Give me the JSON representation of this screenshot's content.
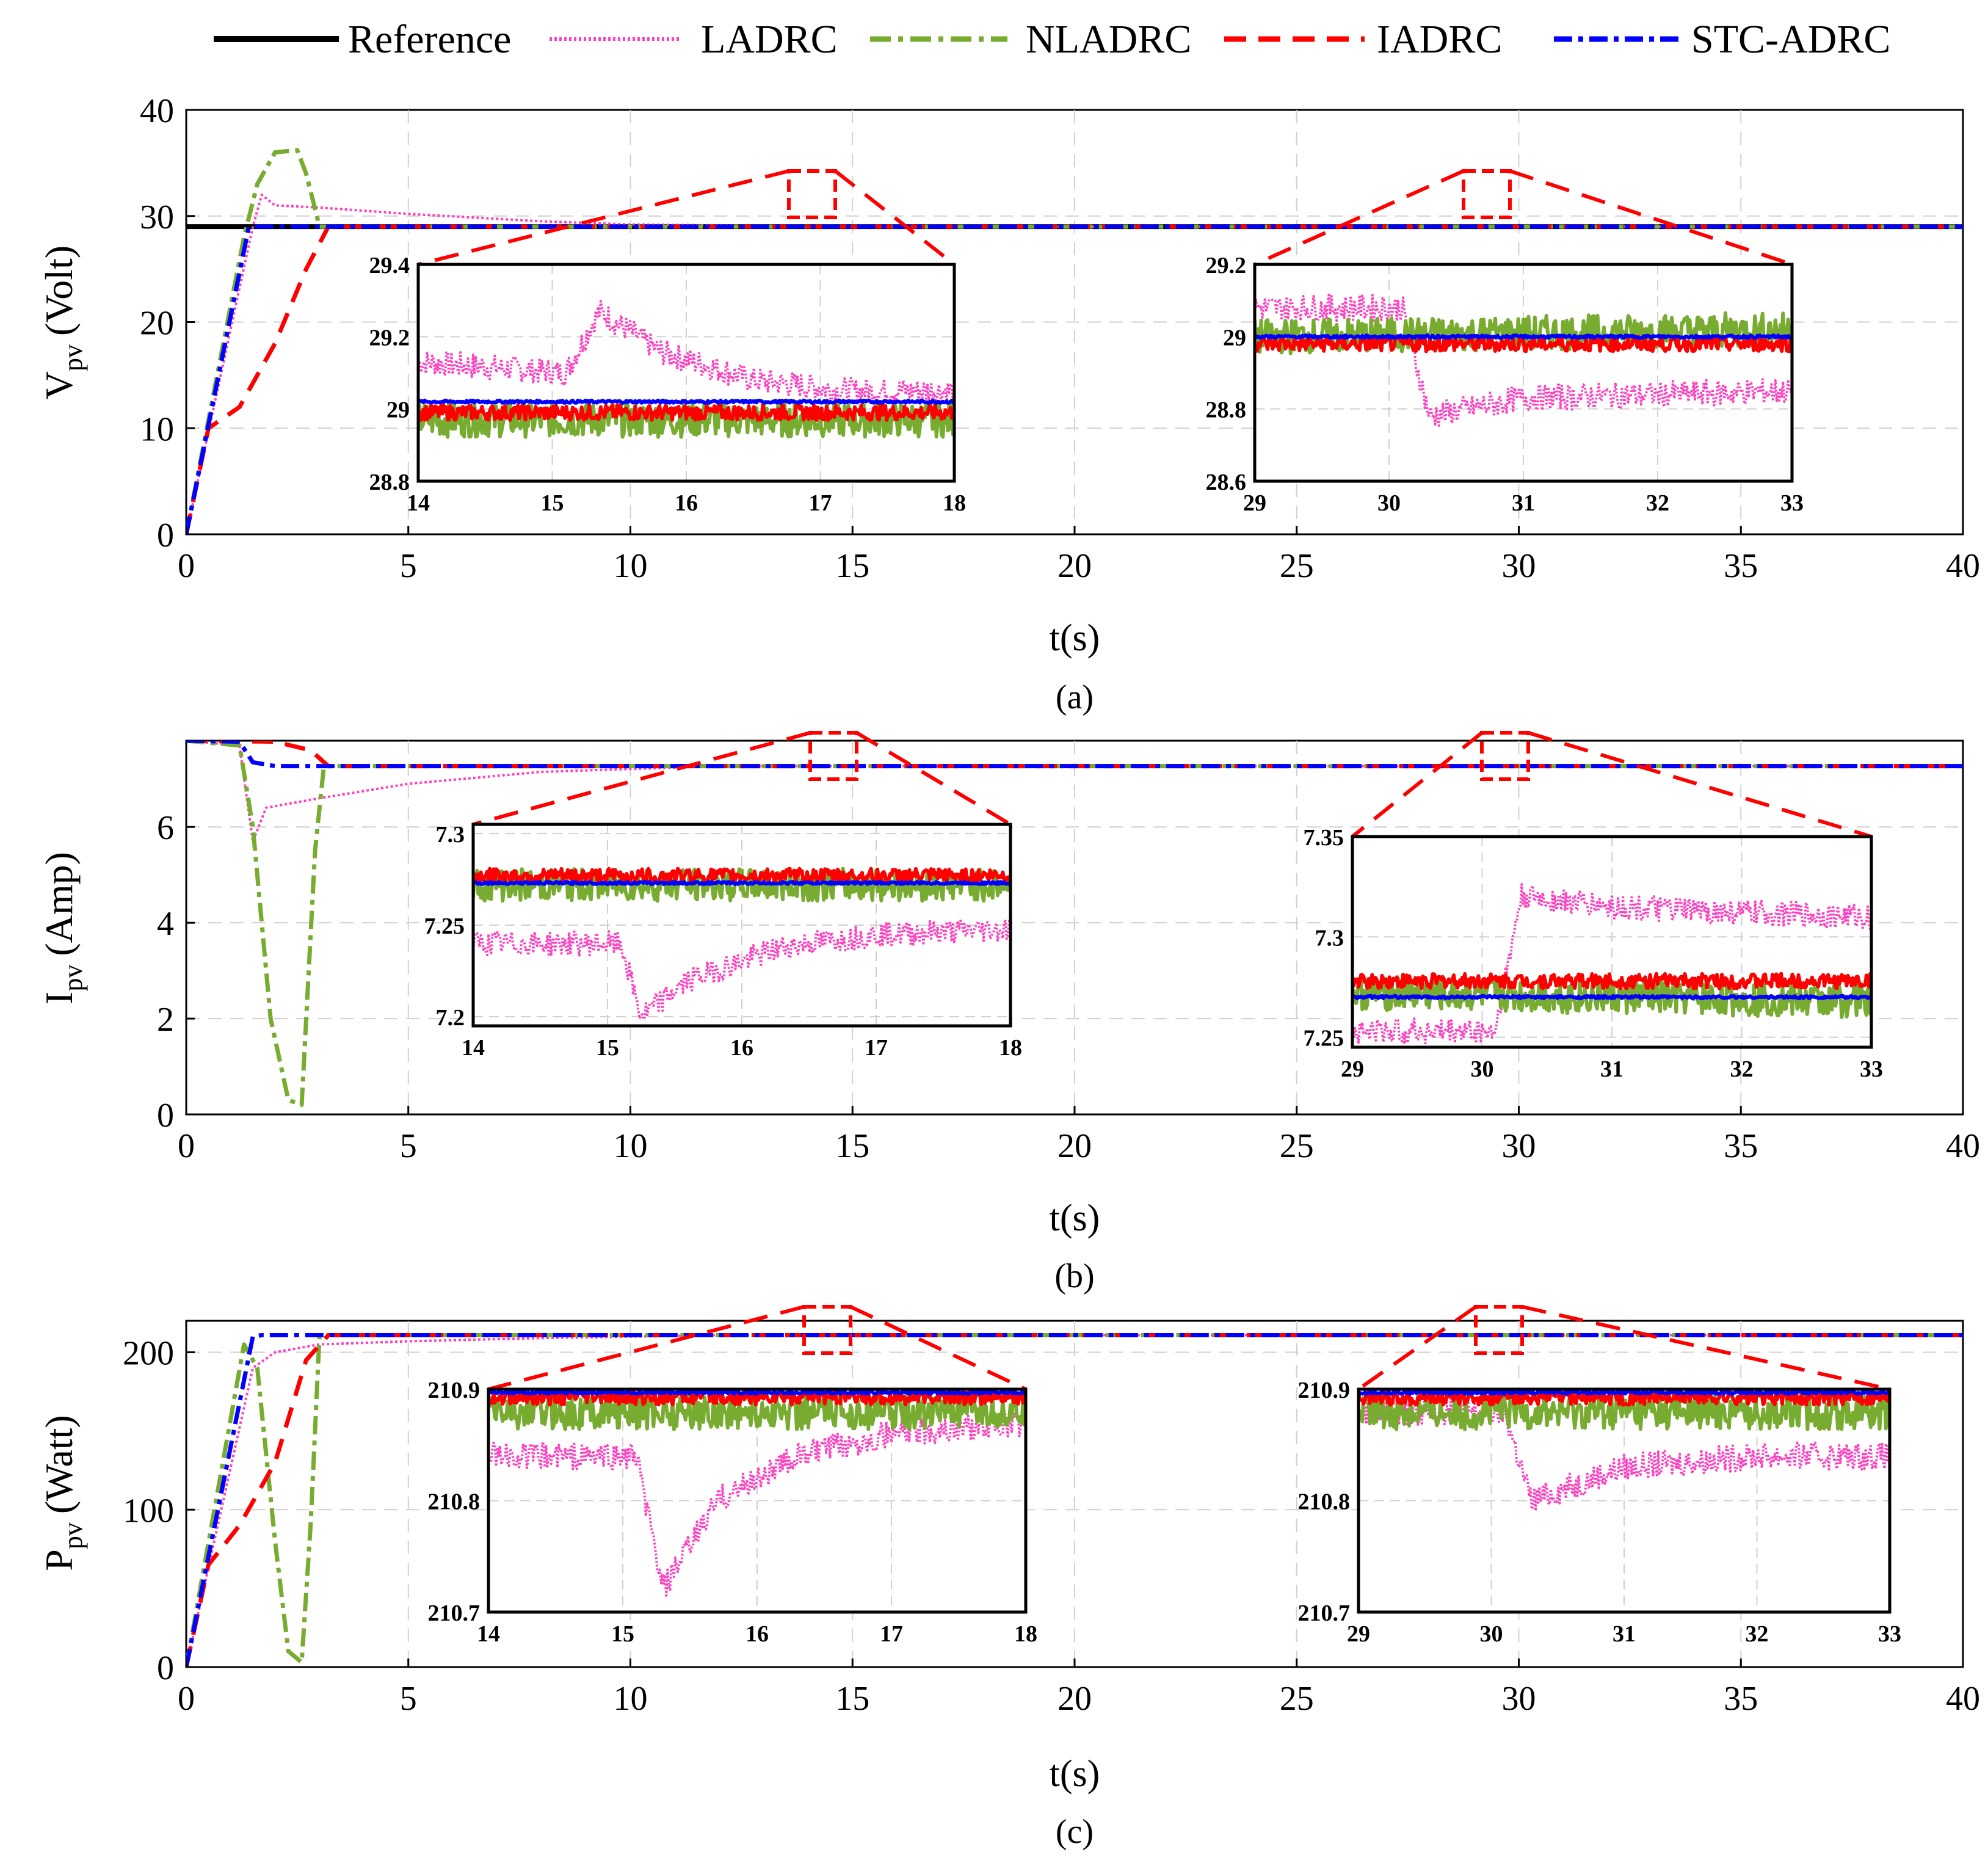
{
  "legend": [
    {
      "name": "Reference",
      "color": "#000000",
      "dash": "solid"
    },
    {
      "name": "LADRC",
      "color": "#ff3fbf",
      "dash": "dot"
    },
    {
      "name": "NLADRC",
      "color": "#77ac30",
      "dash": "dashdot"
    },
    {
      "name": "IADRC",
      "color": "#ff0000",
      "dash": "dash"
    },
    {
      "name": "STC-ADRC",
      "color": "#0000ff",
      "dash": "dashdot"
    }
  ],
  "chart_data": [
    {
      "type": "line",
      "caption": "(a)",
      "xlabel": "t(s)",
      "ylabel_main": "V",
      "ylabel_sub": "pv",
      "ylabel_unit": "(Volt)",
      "xlim": [
        0,
        40
      ],
      "ylim": [
        0,
        40
      ],
      "xticks": [
        0,
        5,
        10,
        15,
        20,
        25,
        30,
        35,
        40
      ],
      "yticks": [
        0,
        10,
        20,
        30,
        40
      ],
      "series": [
        {
          "name": "Reference",
          "x": [
            0,
            40
          ],
          "y": [
            29,
            29
          ]
        },
        {
          "name": "LADRC",
          "x": [
            0,
            1.5,
            1.7,
            2,
            3,
            5,
            8,
            10,
            15,
            40
          ],
          "y": [
            0,
            29,
            32,
            31,
            30.8,
            30.2,
            29.5,
            29.2,
            29,
            29
          ]
        },
        {
          "name": "NLADRC",
          "x": [
            0,
            1.3,
            1.6,
            2,
            2.5,
            2.7,
            3,
            40
          ],
          "y": [
            0,
            28,
            33,
            36,
            36.2,
            34,
            29,
            29
          ]
        },
        {
          "name": "IADRC",
          "x": [
            0,
            0.5,
            1.2,
            2,
            2.7,
            3.2,
            40
          ],
          "y": [
            0,
            10,
            12,
            18,
            25,
            29,
            29
          ]
        },
        {
          "name": "STC-ADRC",
          "x": [
            0,
            1.4,
            1.6,
            40
          ],
          "y": [
            0,
            28.8,
            29,
            29
          ]
        }
      ],
      "insets": [
        {
          "xlim": [
            14,
            18
          ],
          "ylim": [
            28.8,
            29.4
          ],
          "xticks": [
            14,
            15,
            16,
            17,
            18
          ],
          "yticks": [
            "29.4",
            "29.2",
            "29",
            "28.8"
          ],
          "series": [
            {
              "name": "LADRC",
              "x": [
                14,
                15.1,
                15.35,
                15.8,
                16.5,
                17.2,
                18
              ],
              "y": [
                29.13,
                29.1,
                29.27,
                29.16,
                29.08,
                29.05,
                29.05
              ]
            },
            {
              "name": "NLADRC",
              "x": [
                14,
                18
              ],
              "y": [
                28.97,
                28.97
              ]
            },
            {
              "name": "IADRC",
              "x": [
                14,
                18
              ],
              "y": [
                28.99,
                28.99
              ]
            },
            {
              "name": "STC-ADRC",
              "x": [
                14,
                18
              ],
              "y": [
                29.02,
                29.02
              ]
            }
          ]
        },
        {
          "xlim": [
            29,
            33
          ],
          "ylim": [
            28.6,
            29.2
          ],
          "xticks": [
            29,
            30,
            31,
            32,
            33
          ],
          "yticks": [
            "29.2",
            "29",
            "28.8",
            "28.6"
          ],
          "series": [
            {
              "name": "LADRC",
              "x": [
                29,
                30.1,
                30.3,
                31,
                32,
                33
              ],
              "y": [
                29.08,
                29.08,
                28.78,
                28.83,
                28.84,
                28.85
              ]
            },
            {
              "name": "NLADRC",
              "x": [
                29,
                33
              ],
              "y": [
                29.0,
                29.02
              ]
            },
            {
              "name": "IADRC",
              "x": [
                29,
                33
              ],
              "y": [
                28.98,
                28.98
              ]
            },
            {
              "name": "STC-ADRC",
              "x": [
                29,
                33
              ],
              "y": [
                29.0,
                29.0
              ]
            }
          ]
        }
      ]
    },
    {
      "type": "line",
      "caption": "(b)",
      "xlabel": "t(s)",
      "ylabel_main": "I",
      "ylabel_sub": "pv",
      "ylabel_unit": "(Amp)",
      "xlim": [
        0,
        40
      ],
      "ylim": [
        0,
        7.8
      ],
      "xticks": [
        0,
        5,
        10,
        15,
        20,
        25,
        30,
        35,
        40
      ],
      "yticks": [
        0,
        2,
        4,
        6
      ],
      "series": [
        {
          "name": "LADRC",
          "x": [
            0,
            1.2,
            1.5,
            1.8,
            3,
            5,
            8,
            12,
            40
          ],
          "y": [
            7.8,
            7.7,
            5.7,
            6.4,
            6.6,
            6.9,
            7.15,
            7.27,
            7.27
          ]
        },
        {
          "name": "NLADRC",
          "x": [
            0,
            1.2,
            1.5,
            1.9,
            2.3,
            2.6,
            2.9,
            3.1,
            40
          ],
          "y": [
            7.8,
            7.7,
            6,
            2,
            0.3,
            0.2,
            5.5,
            7.27,
            7.27
          ]
        },
        {
          "name": "IADRC",
          "x": [
            0,
            2,
            2.8,
            3.2,
            40
          ],
          "y": [
            7.8,
            7.78,
            7.6,
            7.27,
            7.27
          ]
        },
        {
          "name": "STC-ADRC",
          "x": [
            0,
            1.2,
            1.5,
            2,
            40
          ],
          "y": [
            7.8,
            7.78,
            7.35,
            7.27,
            7.27
          ]
        }
      ],
      "insets": [
        {
          "xlim": [
            14,
            18
          ],
          "ylim": [
            7.195,
            7.305
          ],
          "xticks": [
            14,
            15,
            16,
            17,
            18
          ],
          "yticks": [
            "7.3",
            "7.25",
            "7.2"
          ],
          "series": [
            {
              "name": "LADRC",
              "x": [
                14,
                15.1,
                15.25,
                15.6,
                16.3,
                17,
                18
              ],
              "y": [
                7.24,
                7.24,
                7.2,
                7.22,
                7.238,
                7.245,
                7.248
              ]
            },
            {
              "name": "NLADRC",
              "x": [
                14,
                18
              ],
              "y": [
                7.272,
                7.272
              ]
            },
            {
              "name": "IADRC",
              "x": [
                14,
                18
              ],
              "y": [
                7.277,
                7.277
              ]
            },
            {
              "name": "STC-ADRC",
              "x": [
                14,
                18
              ],
              "y": [
                7.273,
                7.273
              ]
            }
          ]
        },
        {
          "xlim": [
            29,
            33
          ],
          "ylim": [
            7.245,
            7.35
          ],
          "xticks": [
            29,
            30,
            31,
            32,
            33
          ],
          "yticks": [
            "7.35",
            "7.3",
            "7.25"
          ],
          "series": [
            {
              "name": "LADRC",
              "x": [
                29,
                30.1,
                30.3,
                31,
                32,
                33
              ],
              "y": [
                7.253,
                7.253,
                7.32,
                7.315,
                7.312,
                7.31
              ]
            },
            {
              "name": "NLADRC",
              "x": [
                29,
                33
              ],
              "y": [
                7.272,
                7.268
              ]
            },
            {
              "name": "IADRC",
              "x": [
                29,
                33
              ],
              "y": [
                7.278,
                7.278
              ]
            },
            {
              "name": "STC-ADRC",
              "x": [
                29,
                33
              ],
              "y": [
                7.27,
                7.27
              ]
            }
          ]
        }
      ]
    },
    {
      "type": "line",
      "caption": "(c)",
      "xlabel": "t(s)",
      "ylabel_main": "P",
      "ylabel_sub": "pv",
      "ylabel_unit": "(Watt)",
      "xlim": [
        0,
        40
      ],
      "ylim": [
        0,
        220
      ],
      "xticks": [
        0,
        5,
        10,
        15,
        20,
        25,
        30,
        35,
        40
      ],
      "yticks": [
        0,
        100,
        200
      ],
      "series": [
        {
          "name": "LADRC",
          "x": [
            0,
            1.5,
            2,
            3,
            5,
            8,
            12,
            40
          ],
          "y": [
            0,
            190,
            200,
            205,
            207,
            209,
            210.9,
            210.9
          ]
        },
        {
          "name": "NLADRC",
          "x": [
            0,
            1.3,
            1.6,
            2,
            2.3,
            2.6,
            2.8,
            3,
            40
          ],
          "y": [
            0,
            205,
            190,
            80,
            10,
            3,
            90,
            210.9,
            210.9
          ]
        },
        {
          "name": "IADRC",
          "x": [
            0,
            0.5,
            1.2,
            2,
            2.7,
            3.2,
            40
          ],
          "y": [
            0,
            65,
            90,
            130,
            195,
            210.9,
            210.9
          ]
        },
        {
          "name": "STC-ADRC",
          "x": [
            0,
            1.5,
            1.7,
            40
          ],
          "y": [
            0,
            210,
            210.9,
            210.9
          ]
        }
      ],
      "insets": [
        {
          "xlim": [
            14,
            18
          ],
          "ylim": [
            210.7,
            210.9
          ],
          "xticks": [
            14,
            15,
            16,
            17,
            18
          ],
          "yticks": [
            "210.9",
            "210.8",
            "210.7"
          ],
          "series": [
            {
              "name": "LADRC",
              "x": [
                14,
                15.1,
                15.3,
                15.7,
                16.3,
                17,
                18
              ],
              "y": [
                210.84,
                210.84,
                210.72,
                210.8,
                210.84,
                210.86,
                210.87
              ]
            },
            {
              "name": "NLADRC",
              "x": [
                14,
                18
              ],
              "y": [
                210.88,
                210.88
              ]
            },
            {
              "name": "IADRC",
              "x": [
                14,
                18
              ],
              "y": [
                210.893,
                210.893
              ]
            },
            {
              "name": "STC-ADRC",
              "x": [
                14,
                18
              ],
              "y": [
                210.897,
                210.897
              ]
            }
          ]
        },
        {
          "xlim": [
            29,
            33
          ],
          "ylim": [
            210.7,
            210.9
          ],
          "xticks": [
            29,
            30,
            31,
            32,
            33
          ],
          "yticks": [
            "210.9",
            "210.8",
            "210.7"
          ],
          "series": [
            {
              "name": "LADRC",
              "x": [
                29,
                30.1,
                30.3,
                31,
                32,
                33
              ],
              "y": [
                210.88,
                210.88,
                210.8,
                210.83,
                210.84,
                210.84
              ]
            },
            {
              "name": "NLADRC",
              "x": [
                29,
                33
              ],
              "y": [
                210.88,
                210.88
              ]
            },
            {
              "name": "IADRC",
              "x": [
                29,
                33
              ],
              "y": [
                210.893,
                210.893
              ]
            },
            {
              "name": "STC-ADRC",
              "x": [
                29,
                33
              ],
              "y": [
                210.897,
                210.897
              ]
            }
          ]
        }
      ]
    }
  ]
}
